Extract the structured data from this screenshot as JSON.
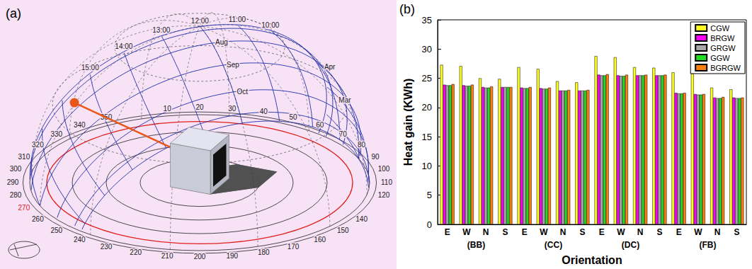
{
  "diagram": {
    "panel_label": "(a)",
    "azimuth_labels": [
      110,
      120,
      140,
      150,
      160,
      170,
      180,
      190,
      200,
      210,
      220,
      230,
      240,
      250,
      260,
      {
        "value": 270,
        "color": "#e0201c"
      },
      280,
      290,
      300,
      310,
      320,
      330,
      340,
      350,
      10,
      20,
      30,
      40,
      50,
      60,
      70,
      80,
      90,
      100
    ],
    "hour_labels": [
      "10:00",
      "11:00",
      "12:00",
      "13:00",
      "14:00",
      "15:00"
    ],
    "months_afternoon": [
      "Aug",
      "Sep",
      "Oct"
    ],
    "months_morning": [
      "Apr",
      "Mar"
    ]
  },
  "chart_data": {
    "panel_label": "(b)",
    "type": "bar",
    "x_label": "Orientation",
    "y_label": "Heat gain (KWh)",
    "categories": [
      "E",
      "W",
      "N",
      "S",
      "E",
      "W",
      "N",
      "S",
      "E",
      "W",
      "N",
      "S",
      "E",
      "W",
      "N",
      "S"
    ],
    "category_groups": [
      "(BB)",
      "(CC)",
      "(DC)",
      "(FB)"
    ],
    "ylim": [
      0,
      35
    ],
    "yticks": [
      0,
      5,
      10,
      15,
      20,
      25,
      30,
      35
    ],
    "grid": false,
    "legend": "upper right",
    "series": [
      {
        "name": "CGW",
        "color": "#ffff1e",
        "values": [
          27.3,
          27.1,
          25.0,
          24.9,
          26.9,
          26.6,
          24.5,
          24.3,
          28.8,
          28.6,
          26.9,
          26.8,
          26.0,
          25.8,
          23.4,
          23.1
        ]
      },
      {
        "name": "BRGW",
        "color": "#ff00ff",
        "values": [
          23.9,
          23.8,
          23.5,
          23.5,
          23.4,
          23.3,
          22.9,
          22.9,
          25.6,
          25.5,
          25.5,
          25.5,
          22.5,
          22.3,
          21.7,
          21.7
        ]
      },
      {
        "name": "GRGW",
        "color": "#a8a8a8",
        "values": [
          23.8,
          23.7,
          23.4,
          23.5,
          23.3,
          23.2,
          22.9,
          22.9,
          25.5,
          25.4,
          25.5,
          25.5,
          22.4,
          22.2,
          21.6,
          21.6
        ]
      },
      {
        "name": "GGW",
        "color": "#22dd22",
        "values": [
          23.8,
          23.7,
          23.4,
          23.5,
          23.3,
          23.2,
          22.9,
          22.9,
          25.5,
          25.4,
          25.5,
          25.5,
          22.4,
          22.2,
          21.6,
          21.6
        ]
      },
      {
        "name": "BGRGW",
        "color": "#ff7f0e",
        "values": [
          24.0,
          23.9,
          23.6,
          23.5,
          23.5,
          23.4,
          23.0,
          23.0,
          25.7,
          25.6,
          25.6,
          25.6,
          22.5,
          22.3,
          21.8,
          21.7
        ]
      }
    ]
  }
}
